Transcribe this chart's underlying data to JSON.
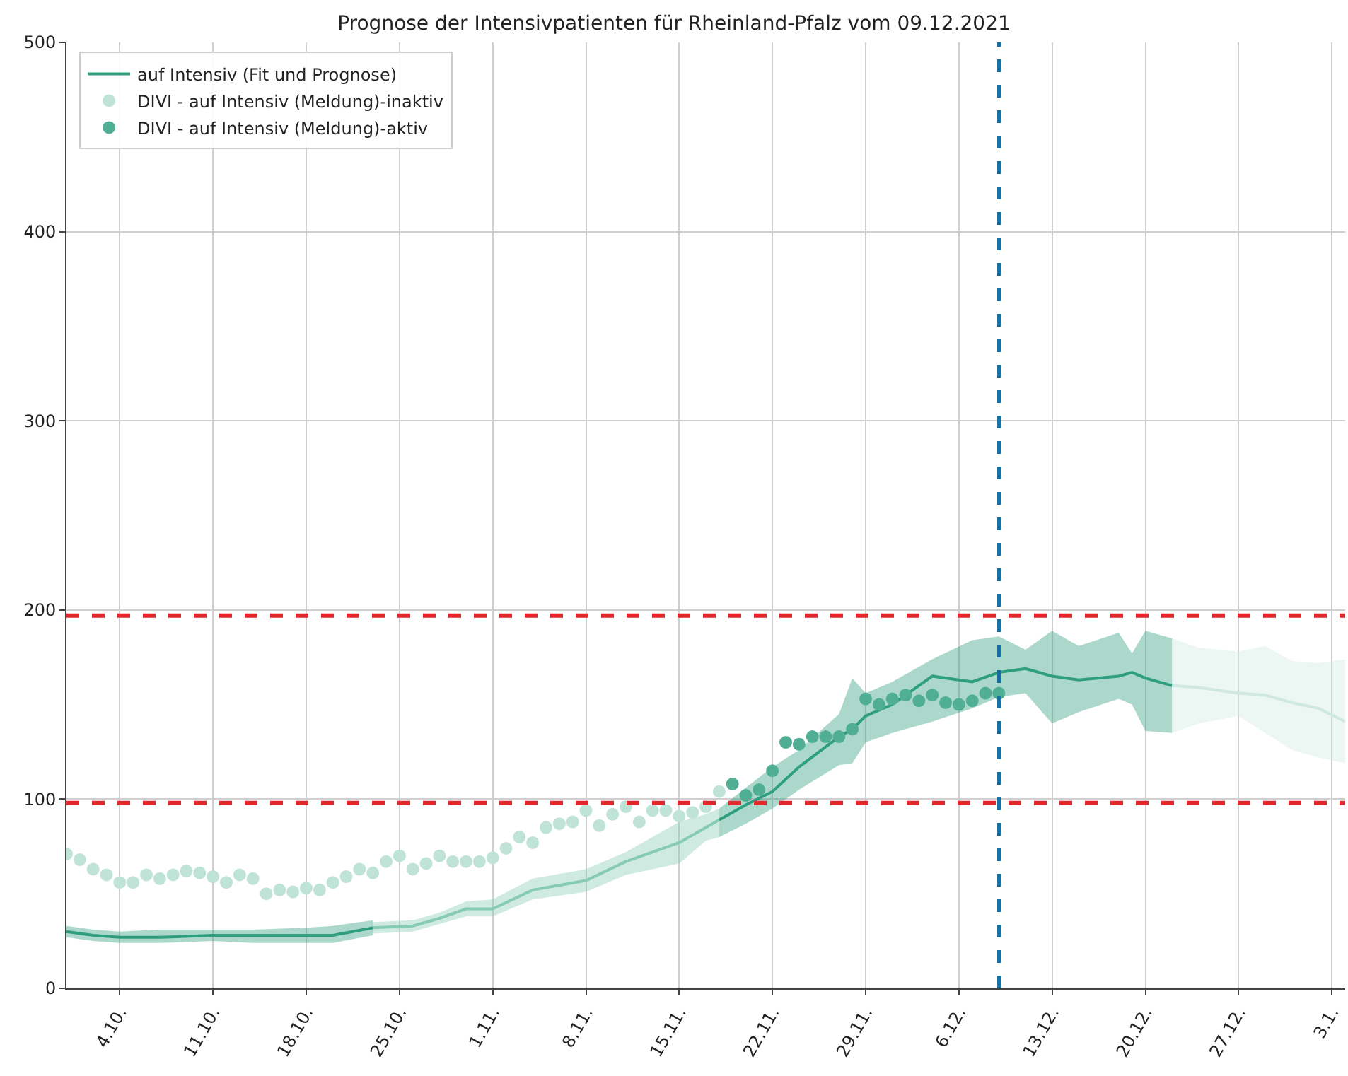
{
  "chart_data": {
    "type": "line",
    "title": "Prognose der Intensivpatienten für Rheinland-Pfalz vom 09.12.2021",
    "xlim": [
      "2021-09-30",
      "2022-01-04"
    ],
    "xticks": [
      {
        "value": "2021-10-04",
        "label": "4.10."
      },
      {
        "value": "2021-10-11",
        "label": "11.10."
      },
      {
        "value": "2021-10-18",
        "label": "18.10."
      },
      {
        "value": "2021-10-25",
        "label": "25.10."
      },
      {
        "value": "2021-11-01",
        "label": "1.11."
      },
      {
        "value": "2021-11-08",
        "label": "8.11."
      },
      {
        "value": "2021-11-15",
        "label": "15.11."
      },
      {
        "value": "2021-11-22",
        "label": "22.11."
      },
      {
        "value": "2021-11-29",
        "label": "29.11."
      },
      {
        "value": "2021-12-06",
        "label": "6.12."
      },
      {
        "value": "2021-12-13",
        "label": "13.12."
      },
      {
        "value": "2021-12-20",
        "label": "20.12."
      },
      {
        "value": "2021-12-27",
        "label": "27.12."
      },
      {
        "value": "2022-01-03",
        "label": "3.1."
      }
    ],
    "ylim": [
      0,
      500
    ],
    "yticks": [
      0,
      100,
      200,
      300,
      400,
      500
    ],
    "grid": true,
    "legend": "top left",
    "series": [
      {
        "name": "auf Intensiv (Fit und Prognose)",
        "color": "#2e9e7e",
        "marker": "none",
        "x": [
          "2021-09-30",
          "2021-10-02",
          "2021-10-04",
          "2021-10-07",
          "2021-10-11",
          "2021-10-14",
          "2021-10-18",
          "2021-10-20",
          "2021-10-23",
          "2021-11-01",
          "2021-11-18",
          "2021-11-20",
          "2021-11-22",
          "2021-11-24",
          "2021-11-27",
          "2021-11-28",
          "2021-11-29",
          "2021-12-01",
          "2021-12-04",
          "2021-12-07",
          "2021-12-09",
          "2021-12-11",
          "2021-12-13",
          "2021-12-15",
          "2021-12-18",
          "2021-12-19",
          "2021-12-20",
          "2021-12-22"
        ],
        "values": [
          30,
          28,
          27,
          27,
          28,
          28,
          28,
          28,
          32,
          null,
          89,
          97,
          104,
          117,
          133,
          137,
          144,
          150,
          165,
          162,
          167,
          169,
          165,
          163,
          165,
          167,
          164,
          160
        ],
        "lower": [
          27,
          25,
          24,
          24,
          25,
          24,
          24,
          24,
          28,
          null,
          80,
          87,
          95,
          105,
          118,
          119,
          130,
          135,
          141,
          148,
          154,
          156,
          140,
          146,
          153,
          150,
          136,
          135
        ],
        "upper": [
          33,
          31,
          30,
          31,
          31,
          31,
          32,
          33,
          36,
          null,
          95,
          106,
          117,
          126,
          145,
          164,
          156,
          162,
          174,
          184,
          186,
          179,
          189,
          181,
          188,
          177,
          189,
          185
        ]
      },
      {
        "color": "#86cbb3",
        "marker": "none",
        "x": [
          "2021-10-23",
          "2021-10-26",
          "2021-10-28",
          "2021-10-30",
          "2021-11-01",
          "2021-11-04",
          "2021-11-08",
          "2021-11-11",
          "2021-11-15",
          "2021-11-17",
          "2021-11-18"
        ],
        "values": [
          32,
          33,
          37,
          42,
          42,
          52,
          57,
          67,
          77,
          85,
          89
        ],
        "lower": [
          29,
          30,
          34,
          38,
          38,
          47,
          51,
          60,
          66,
          78,
          80
        ],
        "upper": [
          35,
          36,
          40,
          46,
          47,
          58,
          63,
          72,
          88,
          92,
          95
        ]
      },
      {
        "color": "#cfe9df",
        "marker": "none",
        "x": [
          "2021-12-22",
          "2021-12-24",
          "2021-12-27",
          "2021-12-29",
          "2021-12-31",
          "2022-01-02",
          "2022-01-04"
        ],
        "values": [
          160,
          159,
          156,
          155,
          151,
          148,
          141
        ],
        "lower": [
          135,
          140,
          144,
          135,
          126,
          122,
          119
        ],
        "upper": [
          185,
          180,
          178,
          181,
          173,
          172,
          174
        ]
      },
      {
        "name": "DIVI - auf Intensiv (Meldung)-inaktiv",
        "type": "scatter",
        "color": "#bfe3d6",
        "marker": "circle",
        "x": [
          "2021-09-30",
          "2021-10-01",
          "2021-10-02",
          "2021-10-03",
          "2021-10-04",
          "2021-10-05",
          "2021-10-06",
          "2021-10-07",
          "2021-10-08",
          "2021-10-09",
          "2021-10-10",
          "2021-10-11",
          "2021-10-12",
          "2021-10-13",
          "2021-10-14",
          "2021-10-15",
          "2021-10-16",
          "2021-10-17",
          "2021-10-18",
          "2021-10-19",
          "2021-10-20",
          "2021-10-21",
          "2021-10-22",
          "2021-10-23",
          "2021-10-24",
          "2021-10-25",
          "2021-10-26",
          "2021-10-27",
          "2021-10-28",
          "2021-10-29",
          "2021-10-30",
          "2021-10-31",
          "2021-11-01",
          "2021-11-02",
          "2021-11-03",
          "2021-11-04",
          "2021-11-05",
          "2021-11-06",
          "2021-11-07",
          "2021-11-08",
          "2021-11-09",
          "2021-11-10",
          "2021-11-11",
          "2021-11-12",
          "2021-11-13",
          "2021-11-14",
          "2021-11-15",
          "2021-11-16",
          "2021-11-17",
          "2021-11-18"
        ],
        "values": [
          71,
          68,
          63,
          60,
          56,
          56,
          60,
          58,
          60,
          62,
          61,
          59,
          56,
          60,
          58,
          50,
          52,
          51,
          53,
          52,
          56,
          59,
          63,
          61,
          67,
          70,
          63,
          66,
          70,
          67,
          67,
          67,
          69,
          74,
          80,
          77,
          85,
          87,
          88,
          94,
          86,
          92,
          96,
          88,
          94,
          94,
          91,
          93,
          96,
          104
        ]
      },
      {
        "name": "DIVI - auf Intensiv (Meldung)-aktiv",
        "type": "scatter",
        "color": "#4fae93",
        "marker": "circle",
        "x": [
          "2021-11-19",
          "2021-11-20",
          "2021-11-21",
          "2021-11-22",
          "2021-11-23",
          "2021-11-24",
          "2021-11-25",
          "2021-11-26",
          "2021-11-27",
          "2021-11-28",
          "2021-11-29",
          "2021-11-30",
          "2021-12-01",
          "2021-12-02",
          "2021-12-03",
          "2021-12-04",
          "2021-12-05",
          "2021-12-06",
          "2021-12-07",
          "2021-12-08",
          "2021-12-09"
        ],
        "values": [
          108,
          102,
          105,
          115,
          130,
          129,
          133,
          133,
          133,
          137,
          153,
          150,
          153,
          155,
          152,
          155,
          151,
          150,
          152,
          156,
          156
        ]
      }
    ],
    "ref_lines": [
      {
        "axis": "y",
        "value": 197,
        "color": "#e0282e",
        "line_style": "dashed"
      },
      {
        "axis": "y",
        "value": 98,
        "color": "#e0282e",
        "line_style": "dashed"
      },
      {
        "axis": "x",
        "value": "2021-12-09",
        "color": "#1670a0",
        "line_style": "dashed"
      }
    ]
  }
}
